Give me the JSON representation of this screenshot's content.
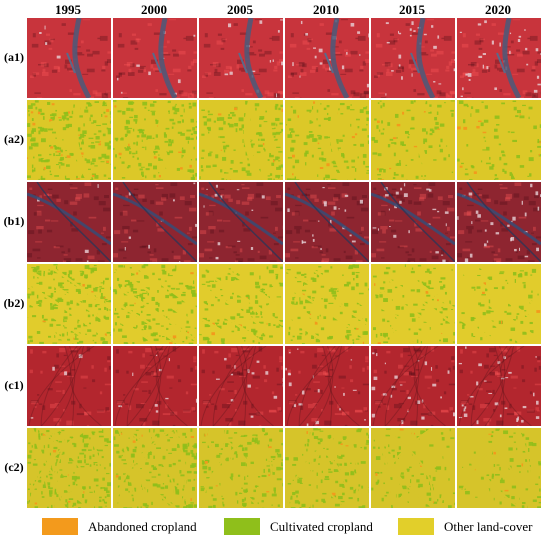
{
  "columns": [
    "1995",
    "2000",
    "2005",
    "2010",
    "2015",
    "2020"
  ],
  "rows": [
    {
      "label": "(a1)",
      "kind": "satellite",
      "base": "#c8343c",
      "site": "a"
    },
    {
      "label": "(a2)",
      "kind": "classified",
      "base": "#dcc828",
      "site": "a"
    },
    {
      "label": "(b1)",
      "kind": "satellite",
      "base": "#8e2530",
      "site": "b"
    },
    {
      "label": "(b2)",
      "kind": "classified",
      "base": "#e1cc2c",
      "site": "b"
    },
    {
      "label": "(c1)",
      "kind": "satellite",
      "base": "#b3262e",
      "site": "c"
    },
    {
      "label": "(c2)",
      "kind": "classified",
      "base": "#d6c42a",
      "site": "c"
    }
  ],
  "legend": [
    {
      "label": "Abandoned cropland",
      "color": "#f39a1c"
    },
    {
      "label": "Cultivated cropland",
      "color": "#8fbf1b"
    },
    {
      "label": "Other land-cover",
      "color": "#e2cf2a"
    }
  ]
}
